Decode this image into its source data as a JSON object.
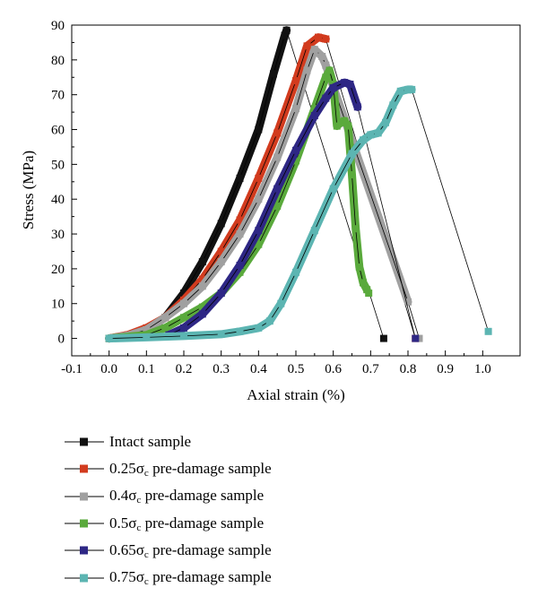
{
  "chart_data": {
    "type": "line",
    "title": "",
    "xlabel": "Axial strain (%)",
    "ylabel": "Stress (MPa)",
    "xlim": [
      -0.1,
      1.1
    ],
    "ylim": [
      -5,
      90
    ],
    "x_ticks": [
      -0.1,
      0.0,
      0.1,
      0.2,
      0.3,
      0.4,
      0.5,
      0.6,
      0.7,
      0.8,
      0.9,
      1.0
    ],
    "x_tick_labels": [
      "-0.1",
      "0.0",
      "0.1",
      "0.2",
      "0.3",
      "0.4",
      "0.5",
      "0.6",
      "0.7",
      "0.8",
      "0.9",
      "1.0"
    ],
    "y_ticks": [
      0,
      10,
      20,
      30,
      40,
      50,
      60,
      70,
      80,
      90
    ],
    "y_tick_labels": [
      "0",
      "10",
      "20",
      "30",
      "40",
      "50",
      "60",
      "70",
      "80",
      "90"
    ],
    "grid": false,
    "legend_position": "bottom",
    "series": [
      {
        "name": "Intact sample",
        "name_base": "Intact sample",
        "name_sub": "",
        "name_rest": "",
        "color": "#111111",
        "x": [
          0.0,
          0.05,
          0.1,
          0.15,
          0.2,
          0.25,
          0.3,
          0.35,
          0.4,
          0.44,
          0.47,
          0.475,
          0.735
        ],
        "y": [
          0,
          0.8,
          2.5,
          6,
          13,
          22,
          33,
          46,
          60,
          76,
          87,
          88.5,
          0
        ]
      },
      {
        "name": "0.25σc pre-damage sample",
        "name_base": "0.25σ",
        "name_sub": "c",
        "name_rest": " pre-damage sample",
        "color": "#d23b1e",
        "x": [
          0.0,
          0.05,
          0.1,
          0.15,
          0.2,
          0.25,
          0.3,
          0.35,
          0.4,
          0.45,
          0.5,
          0.53,
          0.56,
          0.58,
          0.82
        ],
        "y": [
          0,
          1,
          3,
          6,
          11,
          17,
          25,
          34,
          46,
          59,
          74,
          84,
          86.5,
          86,
          0
        ]
      },
      {
        "name": "0.4σc pre-damage sample",
        "name_base": "0.4σ",
        "name_sub": "c",
        "name_rest": " pre-damage sample",
        "color": "#a0a0a0",
        "x": [
          0.0,
          0.05,
          0.1,
          0.15,
          0.2,
          0.25,
          0.3,
          0.35,
          0.4,
          0.45,
          0.5,
          0.53,
          0.55,
          0.57,
          0.58,
          0.8,
          0.83
        ],
        "y": [
          0,
          0.8,
          2.5,
          6,
          10,
          15,
          22,
          30,
          40,
          52,
          66,
          77,
          83,
          81,
          78.5,
          10.5,
          0
        ]
      },
      {
        "name": "0.5σc pre-damage sample",
        "name_base": "0.5σ",
        "name_sub": "c",
        "name_rest": " pre-damage sample",
        "color": "#5aaa3c",
        "x": [
          0.0,
          0.1,
          0.15,
          0.2,
          0.25,
          0.3,
          0.35,
          0.4,
          0.45,
          0.5,
          0.55,
          0.58,
          0.59,
          0.6,
          0.61,
          0.62,
          0.63,
          0.64,
          0.65,
          0.66,
          0.67,
          0.68,
          0.69,
          0.695
        ],
        "y": [
          0,
          1,
          3,
          6,
          9,
          13,
          19,
          27,
          38,
          51,
          66,
          75,
          77,
          73,
          61,
          62,
          62.5,
          61,
          47,
          31.5,
          20.5,
          16,
          14,
          13
        ]
      },
      {
        "name": "0.65σc pre-damage sample",
        "name_base": "0.65σ",
        "name_sub": "c",
        "name_rest": " pre-damage sample",
        "color": "#2e2785",
        "x": [
          0.16,
          0.2,
          0.25,
          0.3,
          0.35,
          0.4,
          0.45,
          0.5,
          0.55,
          0.58,
          0.6,
          0.63,
          0.645,
          0.665,
          0.82
        ],
        "y": [
          1,
          3,
          7,
          13,
          21,
          31,
          43,
          54,
          64,
          69,
          72,
          73.5,
          73,
          66.5,
          0
        ]
      },
      {
        "name": "0.75σc pre-damage sample",
        "name_base": "0.75σ",
        "name_sub": "c",
        "name_rest": " pre-damage sample",
        "color": "#5cb5b2",
        "x": [
          0.0,
          0.1,
          0.2,
          0.3,
          0.35,
          0.4,
          0.43,
          0.46,
          0.5,
          0.55,
          0.6,
          0.65,
          0.68,
          0.7,
          0.72,
          0.74,
          0.76,
          0.78,
          0.8,
          0.81,
          1.015
        ],
        "y": [
          0,
          0.3,
          0.7,
          1.2,
          2,
          3,
          5,
          10,
          19,
          31,
          43,
          53,
          57,
          58.5,
          59,
          62,
          67,
          71,
          71.5,
          71.5,
          2
        ]
      }
    ]
  }
}
